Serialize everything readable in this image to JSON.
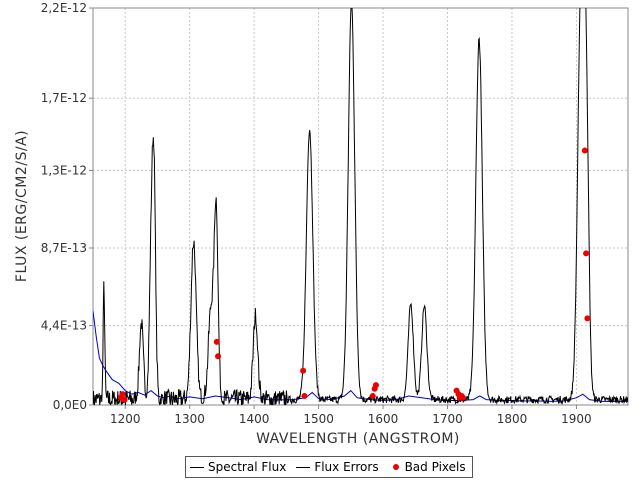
{
  "chart_data": {
    "type": "line",
    "title": "",
    "xlabel": "WAVELENGTH (ANGSTROM)",
    "ylabel": "FLUX (ERG/CM2/S/A)",
    "xlim": [
      1150,
      1980
    ],
    "ylim": [
      0,
      2.2e-12
    ],
    "x_ticks": [
      {
        "value": 1200,
        "label": "1200"
      },
      {
        "value": 1300,
        "label": "1300"
      },
      {
        "value": 1400,
        "label": "1400"
      },
      {
        "value": 1500,
        "label": "1500"
      },
      {
        "value": 1600,
        "label": "1600"
      },
      {
        "value": 1700,
        "label": "1700"
      },
      {
        "value": 1800,
        "label": "1800"
      },
      {
        "value": 1900,
        "label": "1900"
      }
    ],
    "y_ticks": [
      {
        "value": 0,
        "label": "0,0E0"
      },
      {
        "value": 4.4e-13,
        "label": "4,4E-13"
      },
      {
        "value": 8.7e-13,
        "label": "8,7E-13"
      },
      {
        "value": 1.3e-12,
        "label": "1,3E-12"
      },
      {
        "value": 1.7e-12,
        "label": "1,7E-12"
      },
      {
        "value": 2.2e-12,
        "label": "2,2E-12"
      }
    ],
    "grid": true,
    "legend_position": "bottom",
    "series": [
      {
        "name": "Spectral Flux",
        "color": "#000000",
        "peaks": [
          {
            "center": 1167,
            "height": 6.3e-13,
            "width": 1.2
          },
          {
            "center": 1225,
            "height": 4.2e-13,
            "width": 3
          },
          {
            "center": 1241,
            "height": 9.6e-13,
            "width": 3
          },
          {
            "center": 1245,
            "height": 9.3e-13,
            "width": 2.5
          },
          {
            "center": 1306,
            "height": 8.8e-13,
            "width": 4
          },
          {
            "center": 1341,
            "height": 1.05e-12,
            "width": 3
          },
          {
            "center": 1333,
            "height": 5e-13,
            "width": 4
          },
          {
            "center": 1402,
            "height": 4.6e-13,
            "width": 3.5
          },
          {
            "center": 1486,
            "height": 1.5e-12,
            "width": 5
          },
          {
            "center": 1551,
            "height": 2.2e-12,
            "width": 5
          },
          {
            "center": 1643,
            "height": 5.3e-13,
            "width": 4
          },
          {
            "center": 1664,
            "height": 5.2e-13,
            "width": 4
          },
          {
            "center": 1749,
            "height": 2e-12,
            "width": 5
          },
          {
            "center": 1907,
            "height": 2.2e-12,
            "width": 5
          },
          {
            "center": 1915,
            "height": 1.5e-12,
            "width": 4
          }
        ],
        "baseline": 3e-14,
        "noise": 4e-14
      },
      {
        "name": "Flux Errors",
        "color": "#0000cc",
        "values": [
          [
            1150,
            5.2e-13
          ],
          [
            1155,
            3.8e-13
          ],
          [
            1160,
            2.6e-13
          ],
          [
            1165,
            2.2e-13
          ],
          [
            1170,
            1.9e-13
          ],
          [
            1180,
            1.4e-13
          ],
          [
            1190,
            1.2e-13
          ],
          [
            1200,
            8e-14
          ],
          [
            1210,
            6e-14
          ],
          [
            1220,
            7e-14
          ],
          [
            1230,
            5.5e-14
          ],
          [
            1240,
            8e-14
          ],
          [
            1250,
            5e-14
          ],
          [
            1260,
            4e-14
          ],
          [
            1270,
            5e-14
          ],
          [
            1280,
            3.5e-14
          ],
          [
            1300,
            4.5e-14
          ],
          [
            1320,
            3.5e-14
          ],
          [
            1340,
            5e-14
          ],
          [
            1360,
            4e-14
          ],
          [
            1380,
            3e-14
          ],
          [
            1400,
            4.5e-14
          ],
          [
            1420,
            3e-14
          ],
          [
            1440,
            2.8e-14
          ],
          [
            1460,
            3e-14
          ],
          [
            1480,
            4e-14
          ],
          [
            1490,
            7e-14
          ],
          [
            1500,
            3.5e-14
          ],
          [
            1520,
            3e-14
          ],
          [
            1540,
            5e-14
          ],
          [
            1550,
            8e-14
          ],
          [
            1560,
            4e-14
          ],
          [
            1580,
            3e-14
          ],
          [
            1600,
            2.5e-14
          ],
          [
            1620,
            3e-14
          ],
          [
            1640,
            5e-14
          ],
          [
            1660,
            4e-14
          ],
          [
            1680,
            3e-14
          ],
          [
            1700,
            2.5e-14
          ],
          [
            1720,
            2.5e-14
          ],
          [
            1740,
            3e-14
          ],
          [
            1750,
            5e-14
          ],
          [
            1760,
            3e-14
          ],
          [
            1780,
            2.5e-14
          ],
          [
            1800,
            2.5e-14
          ],
          [
            1820,
            2.2e-14
          ],
          [
            1840,
            2.2e-14
          ],
          [
            1860,
            2e-14
          ],
          [
            1880,
            2.2e-14
          ],
          [
            1900,
            4e-14
          ],
          [
            1910,
            6e-14
          ],
          [
            1920,
            3e-14
          ],
          [
            1940,
            2e-14
          ],
          [
            1960,
            2e-14
          ],
          [
            1980,
            2e-14
          ]
        ]
      },
      {
        "name": "Bad Pixels",
        "color": "#ee0000",
        "points": [
          [
            1193,
            4e-14
          ],
          [
            1196,
            6e-14
          ],
          [
            1199,
            3e-14
          ],
          [
            1342,
            3.5e-13
          ],
          [
            1344,
            2.7e-13
          ],
          [
            1476,
            1.9e-13
          ],
          [
            1478,
            5e-14
          ],
          [
            1584,
            5e-14
          ],
          [
            1587,
            9e-14
          ],
          [
            1589,
            1.1e-13
          ],
          [
            1714,
            8e-14
          ],
          [
            1717,
            6e-14
          ],
          [
            1719,
            4e-14
          ],
          [
            1722,
            5e-14
          ],
          [
            1724,
            4e-14
          ],
          [
            1913,
            1.41e-12
          ],
          [
            1915,
            8.4e-13
          ],
          [
            1917,
            4.8e-13
          ]
        ]
      }
    ]
  },
  "legend": {
    "items": [
      {
        "label": "Spectral Flux",
        "color": "#000000"
      },
      {
        "label": "Flux Errors",
        "color": "#000000"
      },
      {
        "label": "Bad Pixels",
        "color": "#ee0000"
      }
    ]
  }
}
